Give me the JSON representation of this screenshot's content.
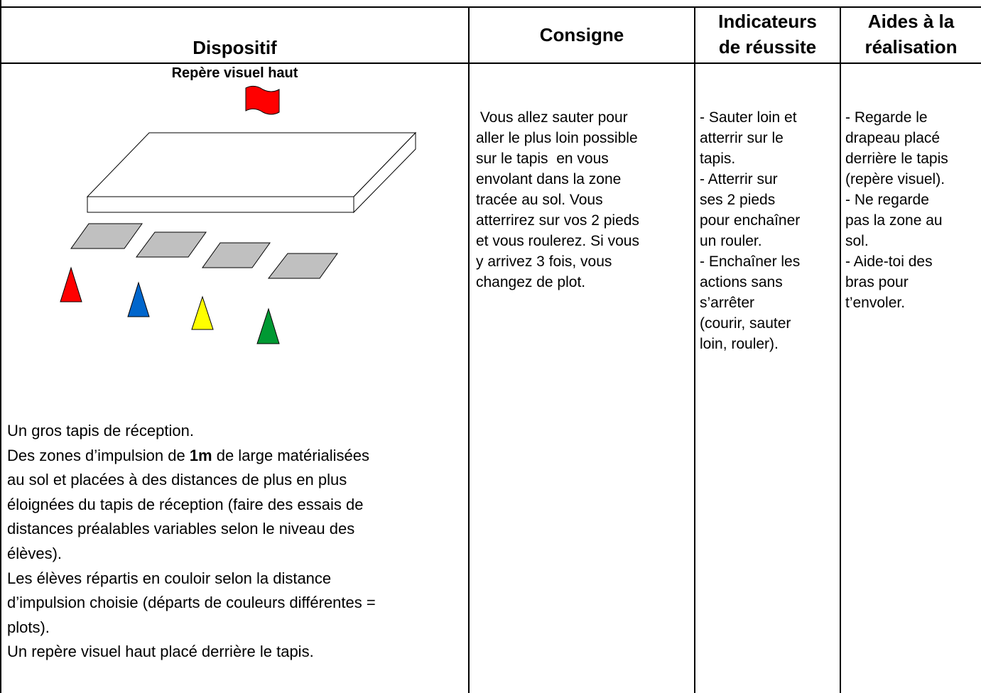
{
  "table": {
    "headers": {
      "dispositif": "Dispositif",
      "consigne": "Consigne",
      "indicateurs": [
        "Indicateurs",
        "de réussite"
      ],
      "aides": [
        "Aides à la",
        "réalisation"
      ]
    },
    "dispositif": {
      "diagram_label": "Repère visuel haut",
      "lines": [
        "Un gros tapis de réception.",
        {
          "before": "Des zones d’impulsion de ",
          "bold": "1m",
          "after": " de large matérialisées"
        },
        "au sol et placées à des distances de plus en plus",
        "éloignées du tapis de réception (faire des essais de",
        "distances préalables variables selon le niveau des",
        "élèves).",
        "Les élèves répartis en couloir selon la distance",
        "d’impulsion choisie (départs de couleurs différentes =",
        "plots).",
        "Un repère visuel haut placé derrière le tapis."
      ]
    },
    "consigne": [
      " Vous allez sauter pour",
      "aller le plus loin possible",
      "sur le tapis  en vous",
      "envolant dans la zone",
      "tracée au sol. Vous",
      "atterrirez sur vos 2 pieds",
      "et vous roulerez. Si vous",
      "y arrivez 3 fois, vous",
      "changez de plot."
    ],
    "indicateurs": [
      "- Sauter loin et",
      "atterrir sur le",
      "tapis.",
      "- Atterrir sur",
      "ses 2 pieds",
      "pour enchaîner",
      "un rouler.",
      "- Enchaîner les",
      "actions sans",
      "s’arrêter",
      "(courir, sauter",
      "loin, rouler)."
    ],
    "aides": [
      "- Regarde le",
      "drapeau placé",
      "derrière le tapis",
      "(repère visuel).",
      "- Ne regarde",
      "pas la zone au",
      "sol.",
      "- Aide-toi des",
      "bras pour",
      "t’envoler."
    ]
  }
}
